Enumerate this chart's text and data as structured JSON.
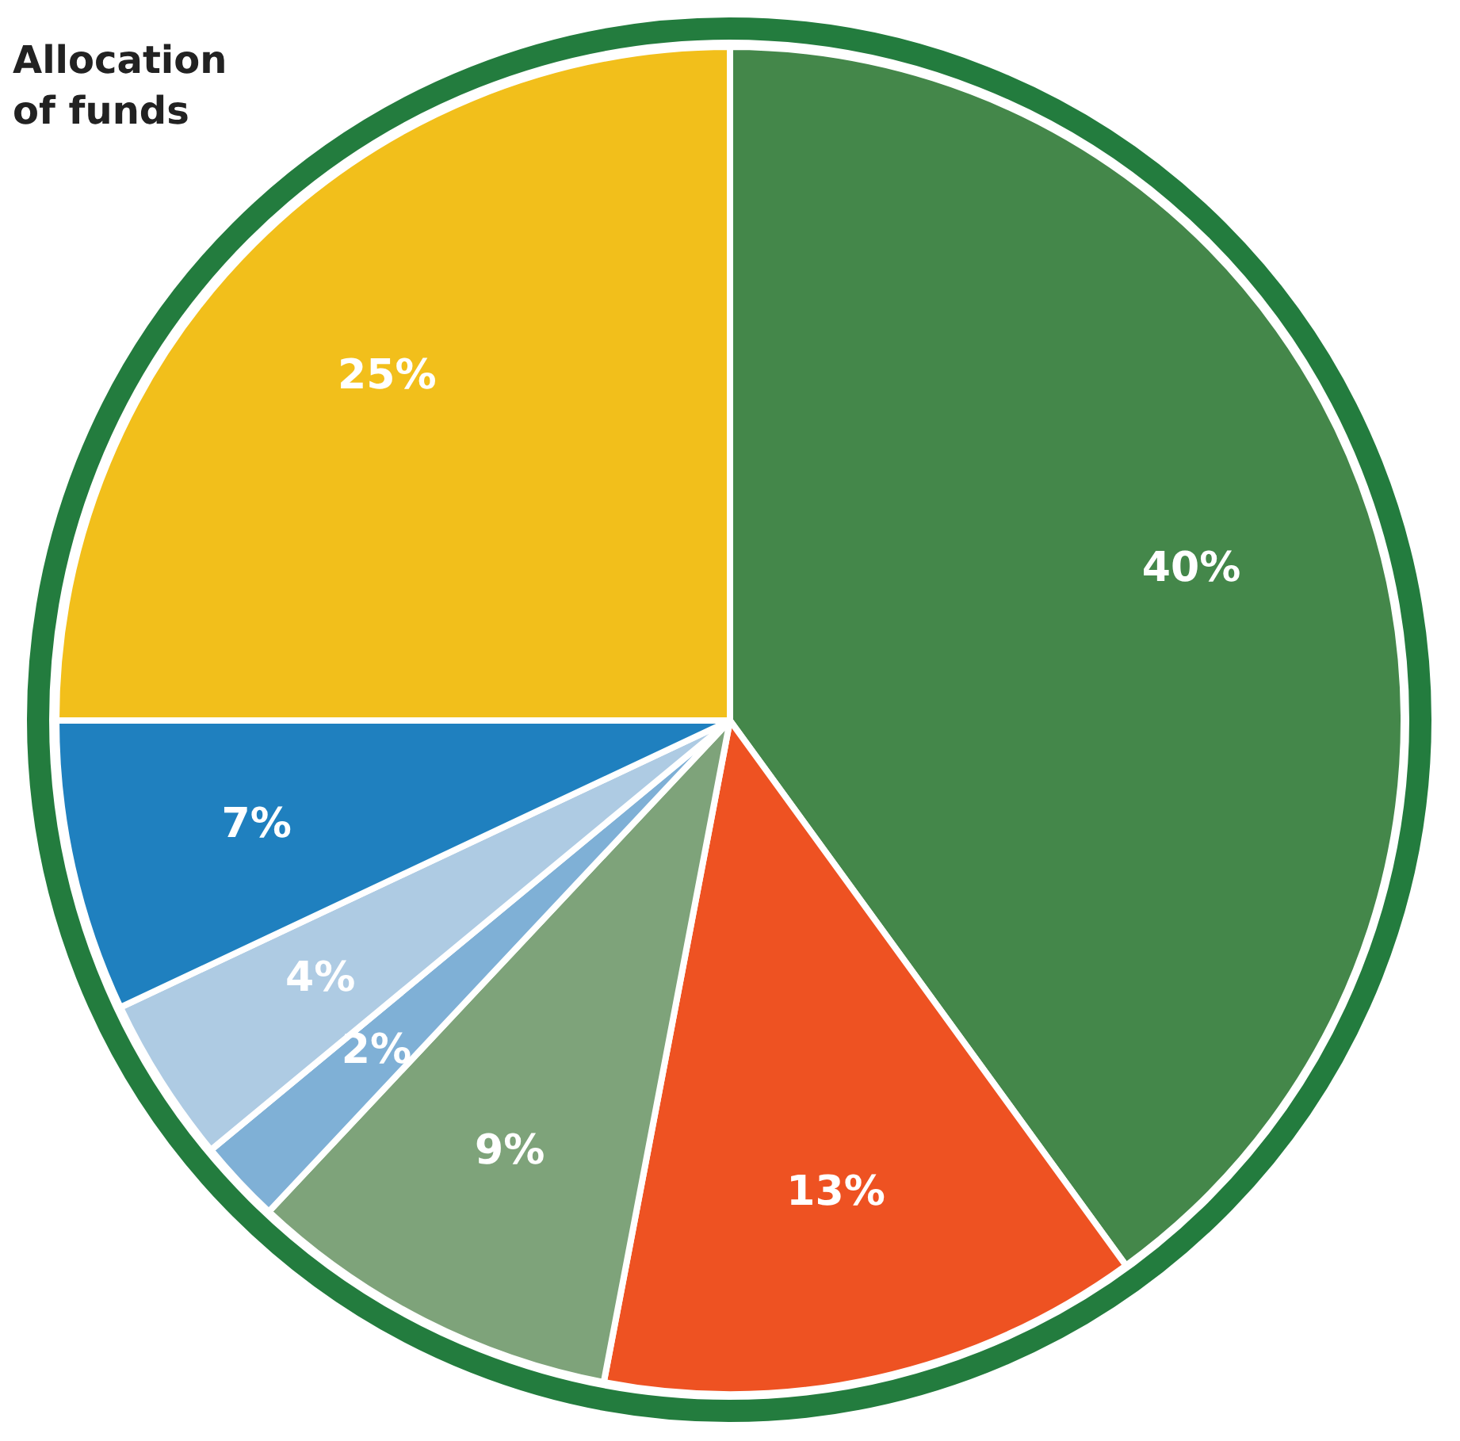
{
  "chart_data": {
    "type": "pie",
    "title": "Allocation of funds",
    "categories": [
      null,
      null,
      null,
      null,
      null,
      null,
      null
    ],
    "values": [
      40,
      13,
      9,
      2,
      4,
      7,
      25
    ],
    "colors": [
      "#44874a",
      "#ee5222",
      "#7ea37a",
      "#7fb0d6",
      "#aecbe3",
      "#1f80bf",
      "#f2bf1b"
    ],
    "value_labels": [
      "40%",
      "13%",
      "9%",
      "2%",
      "4%",
      "7%",
      "25%"
    ],
    "legend": false
  }
}
